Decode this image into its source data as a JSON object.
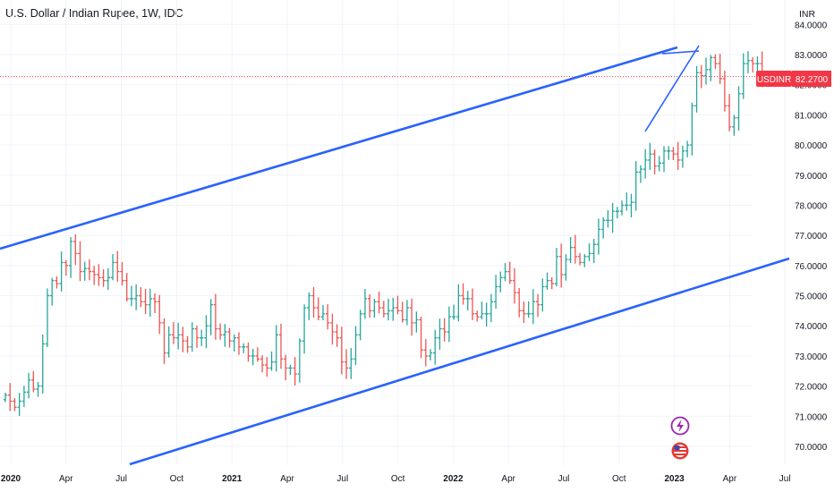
{
  "header": {
    "title": "U.S. Dollar / Indian Rupee, 1W, IDC",
    "currency": "INR"
  },
  "price_badge": {
    "symbol": "USDINR",
    "price": "82.2700",
    "color": "#f23645"
  },
  "colors": {
    "up": "#26a69a",
    "down": "#ef5350",
    "trendline": "#2962ff",
    "grid": "#f0f3fa",
    "badge_icon_lightning": "#9c27b0",
    "badge_icon_flag": "#e53935"
  },
  "chart_data": {
    "type": "ohlc",
    "ylim": [
      69.4,
      84.2
    ],
    "yticks": [
      "70.0000",
      "71.0000",
      "72.0000",
      "73.0000",
      "74.0000",
      "75.0000",
      "76.0000",
      "77.0000",
      "78.0000",
      "79.0000",
      "80.0000",
      "81.0000",
      "82.0000",
      "83.0000",
      "84.0000"
    ],
    "xlabels": [
      {
        "text": "2020",
        "bold": true
      },
      {
        "text": "Apr",
        "bold": false
      },
      {
        "text": "Jul",
        "bold": false
      },
      {
        "text": "Oct",
        "bold": false
      },
      {
        "text": "2021",
        "bold": true
      },
      {
        "text": "Apr",
        "bold": false
      },
      {
        "text": "Jul",
        "bold": false
      },
      {
        "text": "Oct",
        "bold": false
      },
      {
        "text": "2022",
        "bold": true
      },
      {
        "text": "Apr",
        "bold": false
      },
      {
        "text": "Jul",
        "bold": false
      },
      {
        "text": "Oct",
        "bold": false
      },
      {
        "text": "2023",
        "bold": true
      },
      {
        "text": "Apr",
        "bold": false
      },
      {
        "text": "Jul",
        "bold": false
      }
    ],
    "last_price": 82.27,
    "closes": [
      71.7,
      71.5,
      71.3,
      71.5,
      71.8,
      72.2,
      71.9,
      72.0,
      73.4,
      75.0,
      75.5,
      75.4,
      76.1,
      76.0,
      76.8,
      76.4,
      75.8,
      75.9,
      75.8,
      75.7,
      75.6,
      75.5,
      75.6,
      76.1,
      75.8,
      75.5,
      74.9,
      74.9,
      75.0,
      74.8,
      74.7,
      74.9,
      74.8,
      74.1,
      73.1,
      73.7,
      73.6,
      73.7,
      73.5,
      73.3,
      73.9,
      73.6,
      73.6,
      74.0,
      74.7,
      73.9,
      73.7,
      73.8,
      73.5,
      73.6,
      73.3,
      73.3,
      73.0,
      73.0,
      72.9,
      72.7,
      72.6,
      72.8,
      73.7,
      72.9,
      72.6,
      72.6,
      72.4,
      73.5,
      74.6,
      75.0,
      74.6,
      74.3,
      74.4,
      74.1,
      73.8,
      73.6,
      72.8,
      72.6,
      72.9,
      73.7,
      74.4,
      74.9,
      74.5,
      74.8,
      74.6,
      74.4,
      74.5,
      74.6,
      74.5,
      74.2,
      74.6,
      74.1,
      74.2,
      73.2,
      73.0,
      73.1,
      73.6,
      73.9,
      73.8,
      74.3,
      74.3,
      75.0,
      74.9,
      74.9,
      74.4,
      74.3,
      74.4,
      74.4,
      74.8,
      75.3,
      75.6,
      75.8,
      75.5,
      75.1,
      74.5,
      74.4,
      74.4,
      74.8,
      74.7,
      75.3,
      75.5,
      75.4,
      76.3,
      75.7,
      76.2,
      76.6,
      76.3,
      76.1,
      76.3,
      76.4,
      76.7,
      77.2,
      77.5,
      77.5,
      77.8,
      77.8,
      78.0,
      78.0,
      78.1,
      79.1,
      79.2,
      79.5,
      79.7,
      79.3,
      79.4,
      79.8,
      79.8,
      79.7,
      79.5,
      79.8,
      80.0,
      81.3,
      82.4,
      82.3,
      82.5,
      82.9,
      82.7,
      82.2,
      81.3,
      80.6,
      80.9,
      81.7,
      82.7,
      82.8,
      82.7,
      82.7,
      82.27
    ]
  }
}
